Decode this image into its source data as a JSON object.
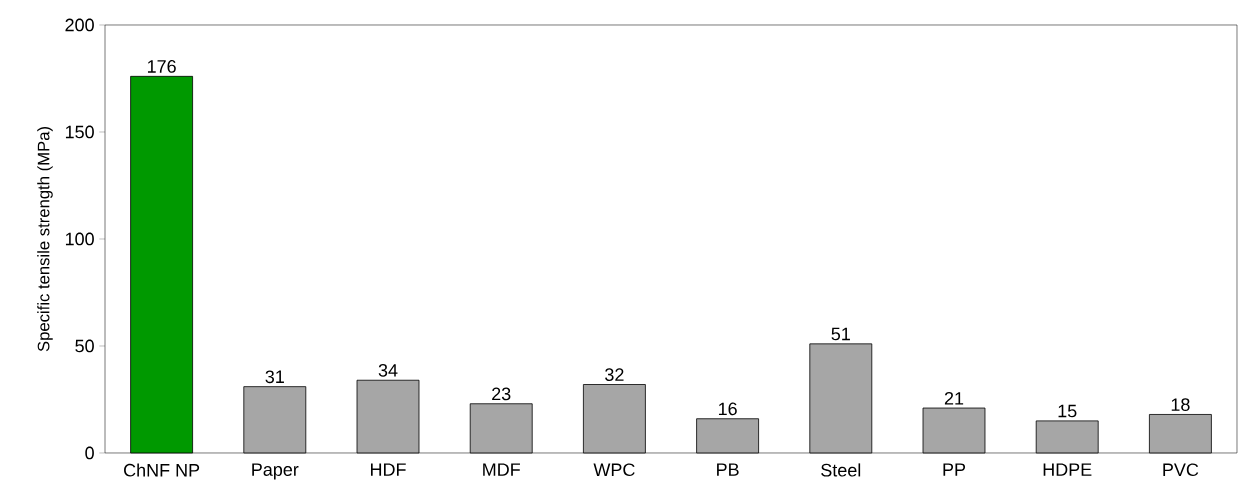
{
  "chart_data": {
    "type": "bar",
    "ylabel": "Specific tensile strength (MPa)",
    "categories": [
      "ChNF NP",
      "Paper",
      "HDF",
      "MDF",
      "WPC",
      "PB",
      "Steel",
      "PP",
      "HDPE",
      "PVC"
    ],
    "values": [
      176,
      31,
      34,
      23,
      32,
      16,
      51,
      21,
      15,
      18
    ],
    "colors": [
      "#009900",
      "#a6a6a6",
      "#a6a6a6",
      "#a6a6a6",
      "#a6a6a6",
      "#a6a6a6",
      "#a6a6a6",
      "#a6a6a6",
      "#a6a6a6",
      "#a6a6a6"
    ],
    "ylim": [
      0,
      200
    ],
    "yticks": [
      0,
      50,
      100,
      150,
      200
    ],
    "data_labels": true
  }
}
